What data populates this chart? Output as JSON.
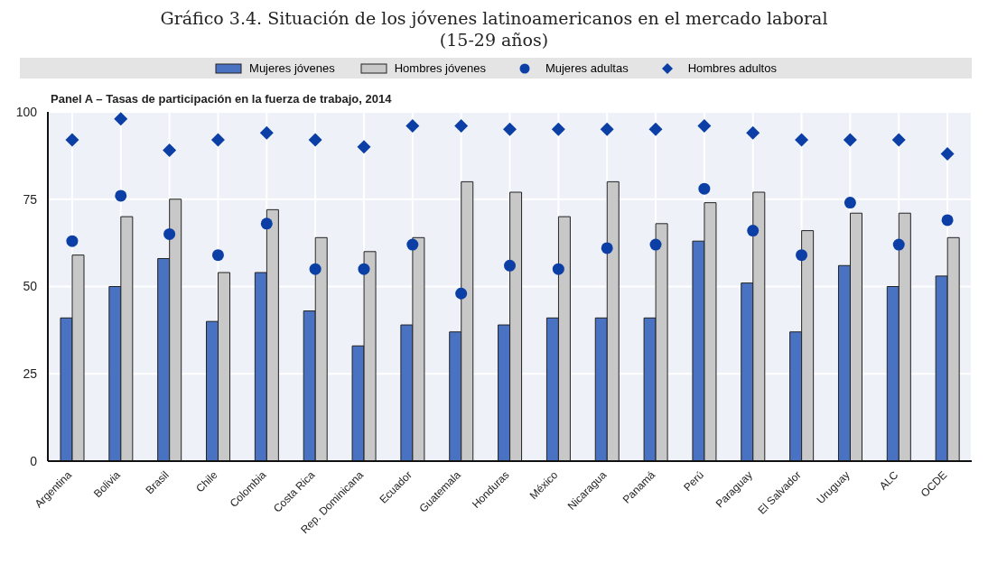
{
  "chart_data": {
    "type": "bar",
    "title": "Gráfico 3.4. Situación de los jóvenes latinoamericanos en el mercado laboral (15-29 años)",
    "subtitle": "Panel A – Tasas de participación en la fuerza de trabajo, 2014",
    "categories": [
      "Argentina",
      "Bolivia",
      "Brasil",
      "Chile",
      "Colombia",
      "Costa Rica",
      "Rep. Dominicana",
      "Ecuador",
      "Guatemala",
      "Honduras",
      "México",
      "Nicaragua",
      "Panamá",
      "Perú",
      "Paraguay",
      "El Salvador",
      "Uruguay",
      "ALC",
      "OCDE"
    ],
    "series": [
      {
        "name": "Mujeres jóvenes",
        "color": "#4a72c2",
        "values": [
          41,
          50,
          58,
          40,
          54,
          43,
          33,
          39,
          37,
          39,
          41,
          41,
          41,
          63,
          51,
          37,
          56,
          50,
          53
        ]
      },
      {
        "name": "Hombres jóvenes",
        "color": "#c8c8c8",
        "values": [
          59,
          70,
          75,
          54,
          72,
          64,
          60,
          64,
          80,
          77,
          70,
          80,
          68,
          74,
          77,
          66,
          71,
          71,
          64
        ]
      },
      {
        "name": "Mujeres adultas",
        "type": "scatter",
        "marker": "circle",
        "color": "#0b3fa6",
        "values": [
          63,
          76,
          65,
          59,
          68,
          55,
          55,
          62,
          48,
          56,
          55,
          61,
          62,
          78,
          66,
          59,
          74,
          62,
          69
        ]
      },
      {
        "name": "Hombres adultos",
        "type": "scatter",
        "marker": "diamond",
        "color": "#0b3fa6",
        "values": [
          92,
          98,
          89,
          92,
          94,
          92,
          90,
          96,
          96,
          95,
          95,
          95,
          95,
          96,
          94,
          92,
          92,
          92,
          88
        ]
      }
    ],
    "ylim": [
      0,
      100
    ],
    "yticks": [
      0,
      25,
      50,
      75,
      100
    ],
    "grid": true,
    "legend": "top"
  }
}
